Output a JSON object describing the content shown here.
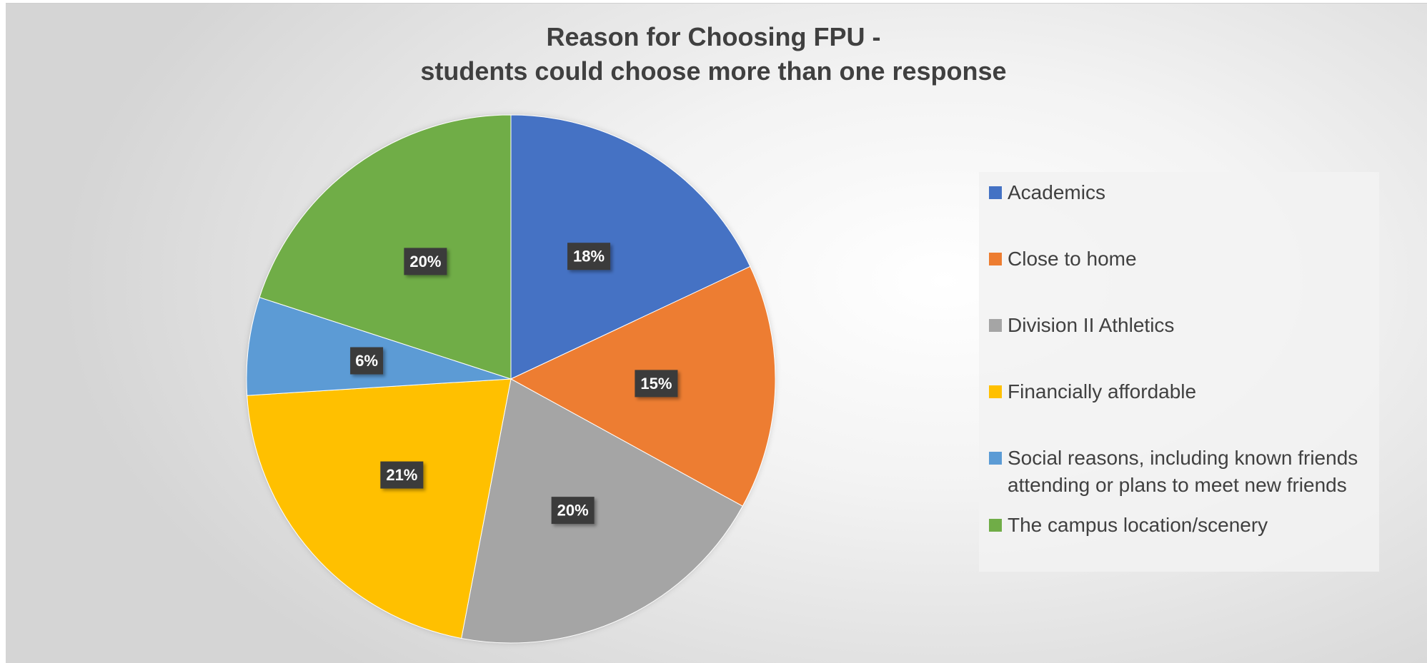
{
  "chart_data": {
    "type": "pie",
    "title": "Reason for Choosing FPU -",
    "subtitle": "students could choose more than one response",
    "categories": [
      "Academics",
      "Close to home",
      "Division II Athletics",
      "Financially affordable",
      "Social reasons, including known friends attending or plans to meet new friends",
      "The campus location/scenery"
    ],
    "values": [
      18,
      15,
      20,
      21,
      6,
      20
    ],
    "data_labels": [
      "18%",
      "15%",
      "20%",
      "21%",
      "6%",
      "20%"
    ],
    "colors": [
      "#4472C4",
      "#ED7D31",
      "#A5A5A5",
      "#FFC000",
      "#5B9BD5",
      "#70AD47"
    ],
    "legend_position": "right",
    "start_angle": "12 o'clock, clockwise"
  }
}
